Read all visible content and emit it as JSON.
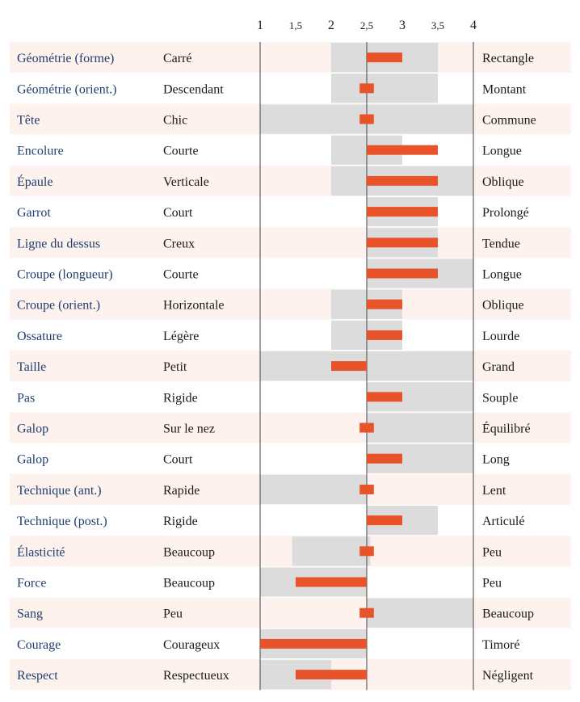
{
  "chart_data": {
    "type": "bar",
    "x_ticks": [
      {
        "value": 1,
        "label": "1"
      },
      {
        "value": 1.5,
        "label": "1,5"
      },
      {
        "value": 2,
        "label": "2"
      },
      {
        "value": 2.5,
        "label": "2,5"
      },
      {
        "value": 3,
        "label": "3"
      },
      {
        "value": 3.5,
        "label": "3,5"
      },
      {
        "value": 4,
        "label": "4"
      }
    ],
    "xlim": [
      1,
      4
    ],
    "baseline": 2.5,
    "colors": {
      "bar": "#e8532a",
      "range": "#dcdcdc",
      "row_alt": "#fdf2ee",
      "trait_text": "#1f3e6d",
      "axis": "#444444"
    },
    "rows": [
      {
        "trait": "Géométrie (forme)",
        "low": "Carré",
        "high": "Rectangle",
        "range": [
          2,
          3.5
        ],
        "value": 3
      },
      {
        "trait": "Géométrie (orient.)",
        "low": "Descendant",
        "high": "Montant",
        "range": [
          2,
          3.5
        ],
        "value": 2.4
      },
      {
        "trait": "Tête",
        "low": "Chic",
        "high": "Commune",
        "range": [
          1,
          4
        ],
        "value": 2.4
      },
      {
        "trait": "Encolure",
        "low": "Courte",
        "high": "Longue",
        "range": [
          2,
          3
        ],
        "value": 3.5
      },
      {
        "trait": "Épaule",
        "low": "Verticale",
        "high": "Oblique",
        "range": [
          2,
          4
        ],
        "value": 3.5
      },
      {
        "trait": "Garrot",
        "low": "Court",
        "high": "Prolongé",
        "range": [
          2.5,
          3.5
        ],
        "value": 3.5
      },
      {
        "trait": "Ligne du dessus",
        "low": "Creux",
        "high": "Tendue",
        "range": [
          2.5,
          3.5
        ],
        "value": 3.5
      },
      {
        "trait": "Croupe (longueur)",
        "low": "Courte",
        "high": "Longue",
        "range": [
          2.5,
          4
        ],
        "value": 3.5
      },
      {
        "trait": "Croupe (orient.)",
        "low": "Horizontale",
        "high": "Oblique",
        "range": [
          2,
          3
        ],
        "value": 3
      },
      {
        "trait": "Ossature",
        "low": "Légère",
        "high": "Lourde",
        "range": [
          2,
          3
        ],
        "value": 3
      },
      {
        "trait": "Taille",
        "low": "Petit",
        "high": "Grand",
        "range": [
          1,
          4
        ],
        "value": 2
      },
      {
        "trait": "Pas",
        "low": "Rigide",
        "high": "Souple",
        "range": [
          2.5,
          4
        ],
        "value": 3
      },
      {
        "trait": "Galop",
        "low": "Sur le nez",
        "high": "Équilibré",
        "range": [
          2.5,
          4
        ],
        "value": 2.4
      },
      {
        "trait": "Galop",
        "low": "Court",
        "high": "Long",
        "range": [
          2.5,
          4
        ],
        "value": 3
      },
      {
        "trait": "Technique (ant.)",
        "low": "Rapide",
        "high": "Lent",
        "range": [
          1,
          2.5
        ],
        "value": 2.4
      },
      {
        "trait": "Technique (post.)",
        "low": "Rigide",
        "high": "Articulé",
        "range": [
          2.5,
          3.5
        ],
        "value": 3
      },
      {
        "trait": "Élasticité",
        "low": "Beaucoup",
        "high": "Peu",
        "range": [
          1.45,
          2.55
        ],
        "value": 2.4
      },
      {
        "trait": "Force",
        "low": "Beaucoup",
        "high": "Peu",
        "range": [
          1,
          2.5
        ],
        "value": 1.5
      },
      {
        "trait": "Sang",
        "low": "Peu",
        "high": "Beaucoup",
        "range": [
          2.5,
          4
        ],
        "value": 2.4
      },
      {
        "trait": "Courage",
        "low": "Courageux",
        "high": "Timoré",
        "range": [
          1,
          2.5
        ],
        "value": 1
      },
      {
        "trait": "Respect",
        "low": "Respectueux",
        "high": "Négligent",
        "range": [
          1,
          2
        ],
        "value": 1.5
      }
    ]
  }
}
